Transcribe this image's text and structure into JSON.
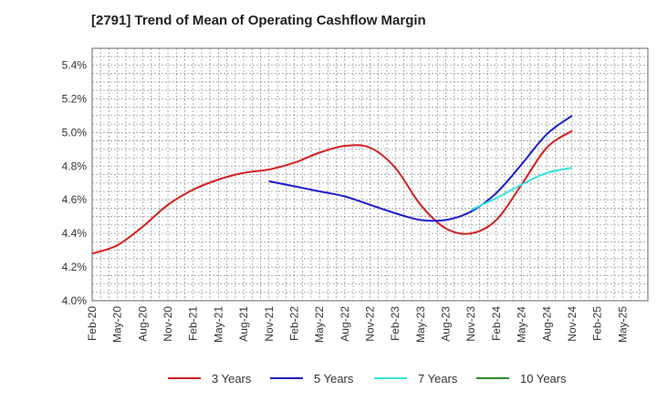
{
  "title": "[2791]  Trend of Mean of Operating Cashflow Margin",
  "chart_data": {
    "type": "line",
    "title": "[2791]  Trend of Mean of Operating Cashflow Margin",
    "xlabel": "",
    "ylabel": "",
    "ylim": [
      4.0,
      5.5
    ],
    "y_ticks": [
      "4.0%",
      "4.2%",
      "4.4%",
      "4.6%",
      "4.8%",
      "5.0%",
      "5.2%",
      "5.4%"
    ],
    "y_tick_values": [
      4.0,
      4.2,
      4.4,
      4.6,
      4.8,
      5.0,
      5.2,
      5.4
    ],
    "x_ticks": [
      "Feb-20",
      "May-20",
      "Aug-20",
      "Nov-20",
      "Feb-21",
      "May-21",
      "Aug-21",
      "Nov-21",
      "Feb-22",
      "May-22",
      "Aug-22",
      "Nov-22",
      "Feb-23",
      "May-23",
      "Aug-23",
      "Nov-23",
      "Feb-24",
      "May-24",
      "Aug-24",
      "Nov-24",
      "Feb-25",
      "May-25"
    ],
    "grid": true,
    "legend_position": "bottom",
    "series": [
      {
        "name": "3 Years",
        "color": "#d42020",
        "points": [
          [
            "Feb-20",
            4.28
          ],
          [
            "May-20",
            4.33
          ],
          [
            "Aug-20",
            4.44
          ],
          [
            "Nov-20",
            4.57
          ],
          [
            "Feb-21",
            4.66
          ],
          [
            "May-21",
            4.72
          ],
          [
            "Aug-21",
            4.76
          ],
          [
            "Nov-21",
            4.78
          ],
          [
            "Feb-22",
            4.82
          ],
          [
            "May-22",
            4.88
          ],
          [
            "Aug-22",
            4.92
          ],
          [
            "Nov-22",
            4.91
          ],
          [
            "Feb-23",
            4.79
          ],
          [
            "May-23",
            4.57
          ],
          [
            "Aug-23",
            4.43
          ],
          [
            "Nov-23",
            4.4
          ],
          [
            "Feb-24",
            4.48
          ],
          [
            "May-24",
            4.69
          ],
          [
            "Aug-24",
            4.91
          ],
          [
            "Nov-24",
            5.01
          ]
        ]
      },
      {
        "name": "5 Years",
        "color": "#1a1acc",
        "points": [
          [
            "Nov-21",
            4.71
          ],
          [
            "Feb-22",
            4.68
          ],
          [
            "May-22",
            4.65
          ],
          [
            "Aug-22",
            4.62
          ],
          [
            "Nov-22",
            4.57
          ],
          [
            "Feb-23",
            4.52
          ],
          [
            "May-23",
            4.48
          ],
          [
            "Aug-23",
            4.48
          ],
          [
            "Nov-23",
            4.53
          ],
          [
            "Feb-24",
            4.64
          ],
          [
            "May-24",
            4.81
          ],
          [
            "Aug-24",
            4.99
          ],
          [
            "Nov-24",
            5.1
          ]
        ]
      },
      {
        "name": "7 Years",
        "color": "#33e3e3",
        "points": [
          [
            "Nov-23",
            4.54
          ],
          [
            "Feb-24",
            4.61
          ],
          [
            "May-24",
            4.69
          ],
          [
            "Aug-24",
            4.76
          ],
          [
            "Nov-24",
            4.79
          ]
        ]
      },
      {
        "name": "10 Years",
        "color": "#2a8a2a",
        "points": []
      }
    ]
  }
}
